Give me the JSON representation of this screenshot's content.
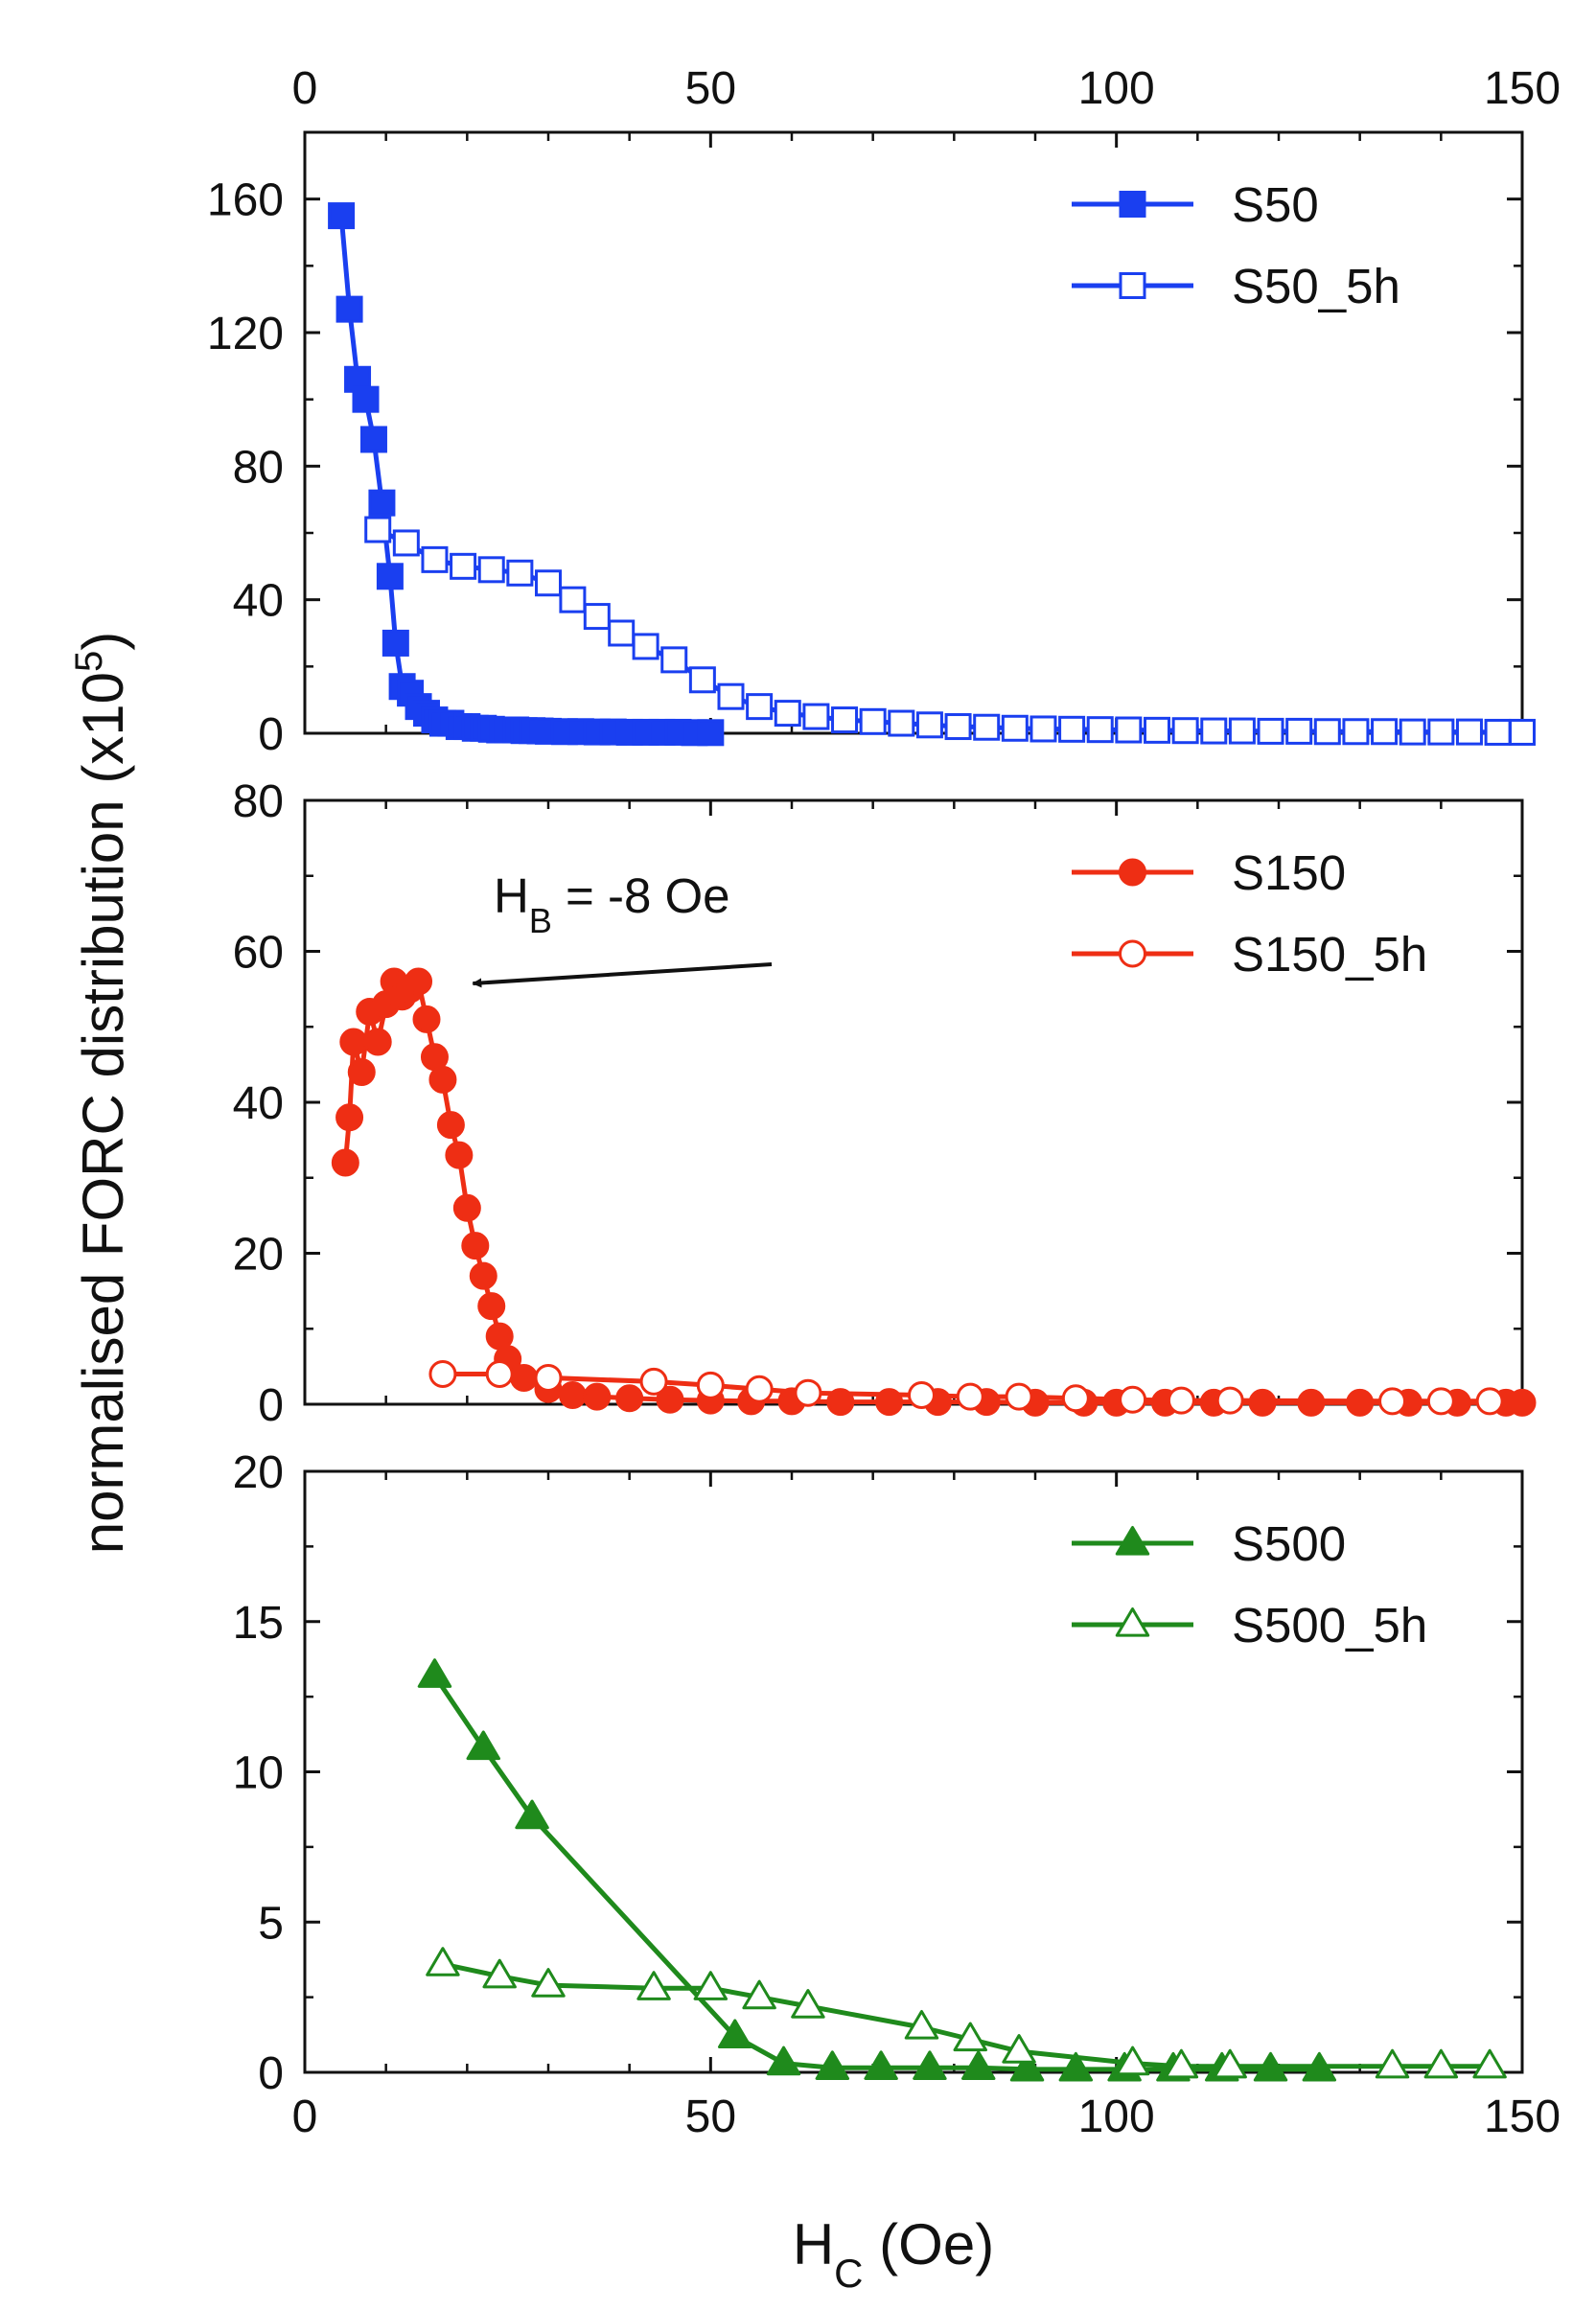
{
  "figure": {
    "ylabel_main": "normalised FORC distribution (x10",
    "ylabel_sup": "5",
    "ylabel_close": ")",
    "xlabel_main": "H",
    "xlabel_sub": "C",
    "xlabel_unit": " (Oe)"
  },
  "annotation": {
    "prefix": "H",
    "sub": "B",
    "suffix": " = -8 Oe",
    "points_to_hc": 20,
    "points_to_value": 56
  },
  "colors": {
    "blue": "#1a3ff0",
    "red": "#ee2e14",
    "green": "#1f8a1c",
    "axis": "#111111"
  },
  "chart_data": [
    {
      "type": "line",
      "panel": "top",
      "xlabel": "H_C (Oe)",
      "ylabel": "normalised FORC distribution (x10^5)",
      "xlim": [
        0,
        150
      ],
      "ylim": [
        0,
        180
      ],
      "xticks": [
        0,
        50,
        100,
        150
      ],
      "yticks": [
        0,
        40,
        80,
        120,
        160
      ],
      "top_tick_labels": [
        "0",
        "50",
        "100",
        "150"
      ],
      "bottom_tick_labels": [],
      "legend_position": "top-right",
      "color": "#1a3ff0",
      "marker": "square",
      "series": [
        {
          "name": "S50",
          "filled": true,
          "x": [
            4.5,
            5.5,
            6.5,
            7.5,
            8.5,
            9.5,
            10.5,
            11.2,
            12,
            13,
            14,
            15,
            16,
            17,
            18,
            19,
            20,
            21,
            22,
            23,
            24,
            25,
            26,
            27,
            28,
            29,
            30,
            32,
            34,
            36,
            38,
            40,
            42,
            44,
            46,
            48,
            50
          ],
          "y": [
            155,
            127,
            106,
            100,
            88,
            69,
            47,
            27,
            14,
            12,
            8,
            6,
            4,
            3,
            3,
            2,
            2,
            1.5,
            1.5,
            1.2,
            1,
            1,
            1,
            0.8,
            0.8,
            0.7,
            0.6,
            0.5,
            0.5,
            0.4,
            0.4,
            0.3,
            0.3,
            0.3,
            0.3,
            0.2,
            0.2
          ]
        },
        {
          "name": "S50_5h",
          "filled": false,
          "x": [
            9,
            12.5,
            16,
            19.5,
            23,
            26.5,
            30,
            33,
            36,
            39,
            42,
            45.5,
            49,
            52.5,
            56,
            59.5,
            63,
            66.5,
            70,
            73.5,
            77,
            80.5,
            84,
            87.5,
            91,
            94.5,
            98,
            101.5,
            105,
            108.5,
            112,
            115.5,
            119,
            122.5,
            126,
            129.5,
            133,
            136.5,
            140,
            143.5,
            147,
            150
          ],
          "y": [
            61,
            57,
            52,
            50,
            49,
            48,
            45,
            40,
            35,
            30,
            26,
            22,
            16,
            11,
            8,
            6,
            5,
            4,
            3.5,
            3,
            2.5,
            2,
            1.8,
            1.5,
            1.3,
            1.2,
            1.1,
            1,
            0.9,
            0.8,
            0.7,
            0.7,
            0.6,
            0.6,
            0.5,
            0.5,
            0.5,
            0.4,
            0.4,
            0.4,
            0.3,
            0.3
          ]
        }
      ]
    },
    {
      "type": "line",
      "panel": "middle",
      "xlim": [
        0,
        150
      ],
      "ylim": [
        0,
        80
      ],
      "xticks": [
        0,
        50,
        100,
        150
      ],
      "yticks": [
        0,
        20,
        40,
        60,
        80
      ],
      "top_tick_labels": [],
      "bottom_tick_labels": [],
      "legend_position": "top-right",
      "color": "#ee2e14",
      "marker": "circle",
      "series": [
        {
          "name": "S150",
          "filled": true,
          "x": [
            5,
            5.5,
            6,
            7,
            8,
            9,
            10,
            11,
            12,
            13,
            14,
            15,
            16,
            17,
            18,
            19,
            20,
            21,
            22,
            23,
            24,
            25,
            27,
            30,
            33,
            36,
            40,
            45,
            50,
            55,
            60,
            66,
            72,
            78,
            84,
            90,
            96,
            100,
            106,
            112,
            118,
            124,
            130,
            136,
            142,
            148,
            150
          ],
          "y": [
            32,
            38,
            48,
            44,
            52,
            48,
            53,
            56,
            54,
            55,
            56,
            51,
            46,
            43,
            37,
            33,
            26,
            21,
            17,
            13,
            9,
            6,
            3.5,
            2,
            1.2,
            1,
            0.8,
            0.6,
            0.5,
            0.4,
            0.4,
            0.3,
            0.3,
            0.3,
            0.3,
            0.2,
            0.2,
            0.2,
            0.2,
            0.2,
            0.2,
            0.2,
            0.2,
            0.2,
            0.2,
            0.2,
            0.2
          ]
        },
        {
          "name": "S150_5h",
          "filled": false,
          "x": [
            17,
            24,
            30,
            43,
            50,
            56,
            62,
            76,
            82,
            88,
            95,
            102,
            108,
            114,
            134,
            140,
            146
          ],
          "y": [
            4,
            4,
            3.5,
            3,
            2.5,
            2,
            1.5,
            1.2,
            1,
            1,
            0.8,
            0.6,
            0.5,
            0.5,
            0.4,
            0.4,
            0.4
          ]
        }
      ]
    },
    {
      "type": "line",
      "panel": "bottom",
      "xlim": [
        0,
        150
      ],
      "ylim": [
        0,
        20
      ],
      "xticks": [
        0,
        50,
        100,
        150
      ],
      "yticks": [
        0,
        5,
        10,
        15,
        20
      ],
      "top_tick_labels": [],
      "bottom_tick_labels": [
        "0",
        "50",
        "100",
        "150"
      ],
      "legend_position": "top-right",
      "color": "#1f8a1c",
      "marker": "triangle",
      "series": [
        {
          "name": "S500",
          "filled": true,
          "x": [
            16,
            22,
            28,
            53,
            59,
            65,
            71,
            77,
            83,
            89,
            95,
            101,
            107,
            113,
            119,
            125
          ],
          "y": [
            13.2,
            10.8,
            8.5,
            1.2,
            0.3,
            0.15,
            0.15,
            0.15,
            0.15,
            0.1,
            0.1,
            0.1,
            0.1,
            0.1,
            0.1,
            0.1
          ]
        },
        {
          "name": "S500_5h",
          "filled": false,
          "x": [
            17,
            24,
            30,
            43,
            50,
            56,
            62,
            76,
            82,
            88,
            102,
            108,
            114,
            134,
            140,
            146
          ],
          "y": [
            3.6,
            3.2,
            2.9,
            2.8,
            2.8,
            2.5,
            2.2,
            1.5,
            1.1,
            0.7,
            0.3,
            0.2,
            0.2,
            0.2,
            0.2,
            0.2
          ]
        }
      ]
    }
  ]
}
